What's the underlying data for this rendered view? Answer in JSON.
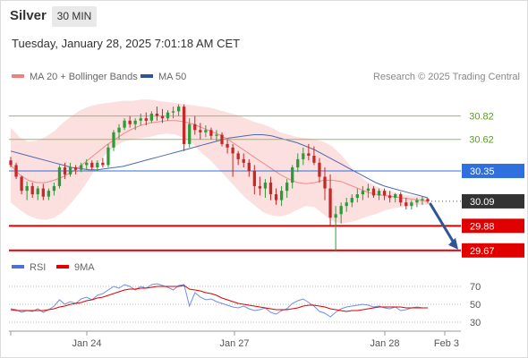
{
  "header": {
    "instrument": "Silver",
    "timeframe": "30 MIN",
    "datetime": "Tuesday, January 28, 2025 7:01:18 AM CET",
    "credit": "Research © 2025 Trading Central"
  },
  "legend": {
    "ma20_label": "MA 20 + Bollinger Bands",
    "ma20_color": "#f08080",
    "ma50_label": "MA 50",
    "ma50_color": "#2f5597",
    "rsi_label": "RSI",
    "rsi_color": "#4f6ed6",
    "rsi_ma_label": "9MA",
    "rsi_ma_color": "#e00000"
  },
  "chart_data": [
    {
      "type": "candlestick",
      "ylim": [
        29.63,
        30.97
      ],
      "x_tick_labels": [
        "Jan 24",
        "Jan 27",
        "Jan 28",
        "Feb 3"
      ],
      "levels": [
        {
          "value": 30.82,
          "label": "30.82",
          "kind": "target",
          "color": "#8fbf5a"
        },
        {
          "value": 30.62,
          "label": "30.62",
          "kind": "target",
          "color": "#8fbf5a"
        },
        {
          "value": 30.35,
          "label": "30.35",
          "kind": "pivot",
          "color": "#2f6fde"
        },
        {
          "value": 30.09,
          "label": "30.09",
          "kind": "last",
          "color": "#333333"
        },
        {
          "value": 29.88,
          "label": "29.88",
          "kind": "support",
          "color": "#e00000"
        },
        {
          "value": 29.67,
          "label": "29.67",
          "kind": "support",
          "color": "#e00000"
        }
      ],
      "forecast_arrow": {
        "from": 30.09,
        "to": 29.67,
        "color": "#2f5597"
      },
      "series": [
        {
          "name": "MA 50",
          "values": [
            30.52,
            30.5,
            30.48,
            30.46,
            30.44,
            30.42,
            30.4,
            30.38,
            30.37,
            30.36,
            30.36,
            30.37,
            30.38,
            30.39,
            30.41,
            30.43,
            30.45,
            30.47,
            30.49,
            30.51,
            30.53,
            30.55,
            30.57,
            30.59,
            30.61,
            30.63,
            30.64,
            30.65,
            30.66,
            30.66,
            30.65,
            30.63,
            30.61,
            30.59,
            30.56,
            30.53,
            30.49,
            30.45,
            30.41,
            30.37,
            30.33,
            30.29,
            30.25,
            30.22,
            30.2,
            30.18,
            30.16,
            30.14,
            30.12
          ]
        },
        {
          "name": "MA 20",
          "values": [
            30.4,
            30.32,
            30.27,
            30.25,
            30.25,
            30.27,
            30.3,
            30.34,
            30.39,
            30.45,
            30.51,
            30.57,
            30.62,
            30.67,
            30.71,
            30.74,
            30.76,
            30.77,
            30.78,
            30.78,
            30.77,
            30.75,
            30.72,
            30.69,
            30.66,
            30.62,
            30.57,
            30.52,
            30.47,
            30.42,
            30.37,
            30.32,
            30.28,
            30.25,
            30.24,
            30.25,
            30.27,
            30.27,
            30.26,
            30.23,
            30.2,
            30.17,
            30.15,
            30.14,
            30.13,
            30.12,
            30.11,
            30.1,
            30.09
          ]
        }
      ],
      "bollinger_band": {
        "upper": [
          30.72,
          30.64,
          30.6,
          30.61,
          30.64,
          30.69,
          30.76,
          30.82,
          30.87,
          30.9,
          30.92,
          30.93,
          30.94,
          30.95,
          30.95,
          30.96,
          30.96,
          30.95,
          30.94,
          30.93,
          30.92,
          30.91,
          30.9,
          30.89,
          30.87,
          30.85,
          30.83,
          30.8,
          30.77,
          30.75,
          30.72,
          30.68,
          30.66,
          30.64,
          30.63,
          30.62,
          30.6,
          30.56,
          30.49,
          30.4,
          30.32,
          30.26,
          30.22,
          30.19,
          30.17,
          30.15,
          30.14,
          30.13,
          30.12
        ],
        "lower": [
          30.08,
          30.02,
          29.97,
          29.94,
          29.93,
          29.95,
          30.0,
          30.08,
          30.17,
          30.28,
          30.4,
          30.5,
          30.56,
          30.6,
          30.62,
          30.63,
          30.64,
          30.66,
          30.67,
          30.66,
          30.63,
          30.58,
          30.5,
          30.44,
          30.36,
          30.28,
          30.2,
          30.12,
          30.06,
          30.0,
          29.97,
          29.96,
          29.98,
          30.02,
          30.05,
          30.04,
          29.98,
          29.92,
          29.9,
          29.91,
          29.93,
          29.96,
          29.98,
          30.01,
          30.03,
          30.04,
          30.05,
          30.06,
          30.06
        ]
      },
      "candles": [
        [
          30.44,
          30.47,
          30.38,
          30.4
        ],
        [
          30.4,
          30.42,
          30.28,
          30.3
        ],
        [
          30.3,
          30.31,
          30.15,
          30.18
        ],
        [
          30.18,
          30.26,
          30.1,
          30.22
        ],
        [
          30.22,
          30.25,
          30.12,
          30.15
        ],
        [
          30.15,
          30.22,
          30.1,
          30.2
        ],
        [
          30.2,
          30.24,
          30.1,
          30.13
        ],
        [
          30.13,
          30.2,
          30.1,
          30.18
        ],
        [
          30.18,
          30.25,
          30.14,
          30.22
        ],
        [
          30.22,
          30.4,
          30.2,
          30.38
        ],
        [
          30.38,
          30.42,
          30.28,
          30.32
        ],
        [
          30.32,
          30.42,
          30.3,
          30.38
        ],
        [
          30.38,
          30.4,
          30.32,
          30.36
        ],
        [
          30.36,
          30.42,
          30.34,
          30.4
        ],
        [
          30.4,
          30.45,
          30.36,
          30.42
        ],
        [
          30.42,
          30.44,
          30.36,
          30.38
        ],
        [
          30.38,
          30.44,
          30.35,
          30.42
        ],
        [
          30.42,
          30.46,
          30.38,
          30.4
        ],
        [
          30.4,
          30.58,
          30.38,
          30.55
        ],
        [
          30.55,
          30.7,
          30.52,
          30.68
        ],
        [
          30.68,
          30.75,
          30.62,
          30.72
        ],
        [
          30.72,
          30.8,
          30.7,
          30.78
        ],
        [
          30.78,
          30.82,
          30.72,
          30.75
        ],
        [
          30.75,
          30.8,
          30.7,
          30.78
        ],
        [
          30.78,
          30.84,
          30.74,
          30.8
        ],
        [
          30.8,
          30.85,
          30.74,
          30.78
        ],
        [
          30.78,
          30.86,
          30.76,
          30.84
        ],
        [
          30.84,
          30.9,
          30.78,
          30.82
        ],
        [
          30.82,
          30.88,
          30.76,
          30.8
        ],
        [
          30.8,
          30.87,
          30.78,
          30.85
        ],
        [
          30.85,
          30.9,
          30.8,
          30.86
        ],
        [
          30.86,
          30.92,
          30.82,
          30.9
        ],
        [
          30.9,
          30.92,
          30.52,
          30.58
        ],
        [
          30.58,
          30.8,
          30.55,
          30.75
        ],
        [
          30.75,
          30.82,
          30.66,
          30.7
        ],
        [
          30.7,
          30.76,
          30.62,
          30.68
        ],
        [
          30.68,
          30.74,
          30.64,
          30.7
        ],
        [
          30.7,
          30.72,
          30.62,
          30.65
        ],
        [
          30.65,
          30.7,
          30.6,
          30.66
        ],
        [
          30.66,
          30.68,
          30.56,
          30.58
        ],
        [
          30.58,
          30.62,
          30.5,
          30.55
        ],
        [
          30.55,
          30.58,
          30.3,
          30.5
        ],
        [
          30.5,
          30.52,
          30.4,
          30.45
        ],
        [
          30.45,
          30.5,
          30.38,
          30.42
        ],
        [
          30.42,
          30.45,
          30.3,
          30.35
        ],
        [
          30.35,
          30.4,
          30.15,
          30.22
        ],
        [
          30.22,
          30.3,
          30.14,
          30.2
        ],
        [
          30.2,
          30.28,
          30.12,
          30.25
        ],
        [
          30.25,
          30.3,
          30.1,
          30.15
        ],
        [
          30.15,
          30.2,
          30.06,
          30.1
        ],
        [
          30.1,
          30.22,
          30.05,
          30.18
        ],
        [
          30.18,
          30.28,
          30.12,
          30.25
        ],
        [
          30.25,
          30.4,
          30.2,
          30.38
        ],
        [
          30.38,
          30.5,
          30.34,
          30.45
        ],
        [
          30.45,
          30.55,
          30.4,
          30.5
        ],
        [
          30.5,
          30.58,
          30.44,
          30.48
        ],
        [
          30.48,
          30.56,
          30.4,
          30.42
        ],
        [
          30.42,
          30.46,
          30.25,
          30.3
        ],
        [
          30.3,
          30.38,
          30.1,
          30.2
        ],
        [
          30.2,
          30.32,
          29.88,
          29.95
        ],
        [
          29.95,
          30.05,
          29.66,
          29.98
        ],
        [
          29.98,
          30.08,
          29.9,
          30.05
        ],
        [
          30.05,
          30.12,
          30.0,
          30.08
        ],
        [
          30.08,
          30.15,
          30.04,
          30.12
        ],
        [
          30.12,
          30.2,
          30.08,
          30.15
        ],
        [
          30.15,
          30.22,
          30.1,
          30.18
        ],
        [
          30.18,
          30.24,
          30.12,
          30.2
        ],
        [
          30.2,
          30.22,
          30.12,
          30.14
        ],
        [
          30.14,
          30.2,
          30.1,
          30.18
        ],
        [
          30.18,
          30.2,
          30.1,
          30.14
        ],
        [
          30.14,
          30.18,
          30.08,
          30.12
        ],
        [
          30.12,
          30.16,
          30.08,
          30.15
        ],
        [
          30.15,
          30.17,
          30.05,
          30.08
        ],
        [
          30.08,
          30.12,
          30.02,
          30.05
        ],
        [
          30.05,
          30.1,
          30.02,
          30.08
        ],
        [
          30.08,
          30.12,
          30.04,
          30.1
        ],
        [
          30.1,
          30.13,
          30.06,
          30.11
        ],
        [
          30.11,
          30.12,
          30.07,
          30.09
        ]
      ]
    },
    {
      "type": "line",
      "ylim": [
        20,
        80
      ],
      "y_ticks": [
        70,
        50,
        30
      ],
      "levels": [
        70,
        50,
        30
      ],
      "series": [
        {
          "name": "RSI",
          "values": [
            45,
            44,
            41,
            43,
            42,
            45,
            41,
            44,
            48,
            55,
            50,
            53,
            51,
            56,
            58,
            55,
            60,
            62,
            66,
            70,
            68,
            72,
            70,
            66,
            70,
            68,
            72,
            73,
            71,
            69,
            66,
            71,
            72,
            48,
            63,
            58,
            55,
            56,
            53,
            51,
            49,
            47,
            46,
            48,
            45,
            43,
            44,
            46,
            41,
            39,
            43,
            45,
            51,
            54,
            56,
            52,
            48,
            42,
            40,
            36,
            41,
            45,
            47,
            48,
            49,
            50,
            49,
            47,
            48,
            46,
            45,
            47,
            43,
            44,
            46,
            47,
            46,
            46
          ]
        },
        {
          "name": "9MA",
          "values": [
            44,
            43,
            43,
            43,
            43,
            43,
            43,
            44,
            45,
            47,
            48,
            50,
            51,
            52,
            54,
            55,
            57,
            58,
            60,
            62,
            64,
            66,
            67,
            67,
            68,
            68,
            69,
            70,
            70,
            70,
            70,
            70,
            71,
            67,
            66,
            65,
            63,
            62,
            60,
            57,
            55,
            53,
            51,
            50,
            49,
            48,
            47,
            46,
            45,
            44,
            44,
            44,
            45,
            46,
            48,
            49,
            49,
            48,
            47,
            45,
            44,
            43,
            42,
            43,
            43,
            44,
            45,
            46,
            47,
            47,
            47,
            47,
            47,
            46,
            46,
            46,
            46,
            46
          ]
        }
      ]
    }
  ]
}
